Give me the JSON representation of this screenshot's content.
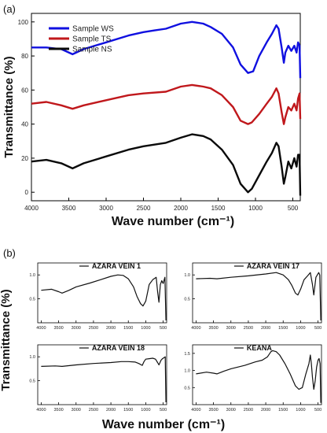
{
  "panel_a": {
    "label": "(a)",
    "xlabel": "Wave number (cm⁻¹)",
    "ylabel": "Transmittance (%)"
  },
  "panel_b": {
    "label": "(b)",
    "xlabel": "Wave number (cm⁻¹)",
    "ylabel": "Transmittance (%)"
  },
  "chart_data": [
    {
      "type": "line",
      "panel": "a",
      "xlabel": "Wave number (cm⁻¹)",
      "ylabel": "Transmittance (%)",
      "xlim": [
        4000,
        400
      ],
      "ylim": [
        -5,
        105
      ],
      "x_ticks": [
        "4000",
        "3500",
        "3000",
        "2500",
        "2000",
        "1500",
        "1000",
        "500"
      ],
      "y_ticks": [
        "0",
        "20",
        "40",
        "60",
        "80",
        "100"
      ],
      "legend_position": "top-left",
      "series": [
        {
          "name": "Sample WS",
          "color": "#1010e0",
          "x": [
            4000,
            3800,
            3600,
            3450,
            3300,
            3000,
            2700,
            2500,
            2350,
            2200,
            2000,
            1850,
            1700,
            1600,
            1450,
            1300,
            1200,
            1100,
            1030,
            950,
            850,
            780,
            720,
            690,
            650,
            620,
            600,
            560,
            520,
            480,
            450,
            430,
            410,
            400
          ],
          "y": [
            85,
            85,
            84,
            81,
            84,
            88,
            92,
            94,
            95,
            96,
            99,
            100,
            99,
            97,
            93,
            85,
            75,
            70,
            71,
            80,
            88,
            93,
            98,
            96,
            85,
            76,
            82,
            86,
            83,
            86,
            82,
            88,
            86,
            67
          ]
        },
        {
          "name": "Sample TS",
          "color": "#c0181c",
          "x": [
            4000,
            3800,
            3600,
            3450,
            3300,
            3000,
            2700,
            2500,
            2200,
            2000,
            1850,
            1700,
            1600,
            1450,
            1300,
            1200,
            1100,
            1050,
            950,
            850,
            780,
            720,
            690,
            650,
            620,
            600,
            560,
            520,
            480,
            450,
            430,
            410,
            400
          ],
          "y": [
            52,
            53,
            51,
            49,
            51,
            54,
            57,
            58,
            59,
            62,
            63,
            62,
            61,
            57,
            50,
            42,
            40,
            41,
            46,
            52,
            56,
            61,
            58,
            47,
            40,
            44,
            50,
            48,
            52,
            48,
            55,
            58,
            43
          ]
        },
        {
          "name": "Sample NS",
          "color": "#0a0a0a",
          "x": [
            4000,
            3800,
            3600,
            3450,
            3300,
            3000,
            2700,
            2500,
            2200,
            2000,
            1850,
            1700,
            1600,
            1450,
            1300,
            1200,
            1100,
            1050,
            950,
            850,
            780,
            720,
            690,
            650,
            620,
            600,
            560,
            520,
            480,
            450,
            430,
            410,
            400
          ],
          "y": [
            18,
            19,
            17,
            14,
            17,
            21,
            25,
            27,
            29,
            32,
            34,
            33,
            31,
            25,
            16,
            5,
            0,
            2,
            10,
            18,
            23,
            29,
            27,
            15,
            5,
            9,
            18,
            14,
            20,
            15,
            22,
            22,
            -2
          ]
        }
      ]
    },
    {
      "type": "line",
      "panel": "b1",
      "xlim": [
        4100,
        400
      ],
      "ylim": [
        0,
        1.25
      ],
      "x_ticks": [
        "4000",
        "3500",
        "3000",
        "2500",
        "2000",
        "1500",
        "1000",
        "500"
      ],
      "y_ticks": [
        "0.5",
        "1.0"
      ],
      "legend_position": "top",
      "series": [
        {
          "name": "AZARA VEIN 1",
          "color": "#111111",
          "x": [
            4000,
            3700,
            3500,
            3400,
            3200,
            3000,
            2600,
            2300,
            2000,
            1800,
            1650,
            1500,
            1350,
            1250,
            1150,
            1080,
            1000,
            900,
            800,
            700,
            660,
            620,
            580,
            540,
            500,
            470,
            450,
            420
          ],
          "y": [
            0.68,
            0.7,
            0.65,
            0.62,
            0.68,
            0.75,
            0.83,
            0.9,
            0.97,
            1.0,
            0.99,
            0.92,
            0.75,
            0.55,
            0.4,
            0.35,
            0.45,
            0.8,
            0.9,
            0.95,
            0.65,
            0.43,
            0.8,
            0.88,
            0.82,
            0.9,
            0.95,
            0.05
          ]
        }
      ]
    },
    {
      "type": "line",
      "panel": "b2",
      "xlim": [
        4100,
        400
      ],
      "ylim": [
        0,
        1.25
      ],
      "x_ticks": [
        "4000",
        "3500",
        "3000",
        "2500",
        "2000",
        "1500",
        "1000",
        "500"
      ],
      "y_ticks": [
        "0.5",
        "1.0"
      ],
      "legend_position": "top",
      "series": [
        {
          "name": "AZARA VEIN 17",
          "color": "#111111",
          "x": [
            4000,
            3600,
            3400,
            3000,
            2500,
            2000,
            1700,
            1500,
            1350,
            1250,
            1150,
            1080,
            1000,
            900,
            800,
            720,
            660,
            620,
            560,
            520,
            480,
            450,
            420
          ],
          "y": [
            0.92,
            0.93,
            0.92,
            0.95,
            0.98,
            1.02,
            1.05,
            1.0,
            0.9,
            0.78,
            0.62,
            0.58,
            0.7,
            0.9,
            0.98,
            1.05,
            0.8,
            0.58,
            0.95,
            1.0,
            1.05,
            1.0,
            0.05
          ]
        }
      ]
    },
    {
      "type": "line",
      "panel": "b3",
      "xlim": [
        4100,
        400
      ],
      "ylim": [
        0,
        1.25
      ],
      "x_ticks": [
        "4000",
        "3500",
        "3000",
        "2500",
        "2000",
        "1500",
        "1000",
        "500"
      ],
      "y_ticks": [
        "0.5",
        "1.0"
      ],
      "legend_position": "top",
      "series": [
        {
          "name": "AZARA VEIN 18",
          "color": "#111111",
          "x": [
            4000,
            3600,
            3400,
            3000,
            2500,
            2000,
            1700,
            1500,
            1300,
            1200,
            1100,
            1050,
            1000,
            900,
            800,
            720,
            660,
            620,
            560,
            520,
            480,
            460,
            440,
            420
          ],
          "y": [
            0.8,
            0.81,
            0.8,
            0.83,
            0.86,
            0.88,
            0.9,
            0.9,
            0.89,
            0.86,
            0.82,
            0.9,
            0.95,
            0.96,
            0.97,
            0.95,
            0.88,
            0.83,
            0.93,
            0.96,
            0.98,
            0.99,
            1.0,
            0.05
          ]
        }
      ]
    },
    {
      "type": "line",
      "panel": "b4",
      "xlim": [
        4100,
        400
      ],
      "ylim": [
        0,
        1.75
      ],
      "x_ticks": [
        "4000",
        "3500",
        "3000",
        "2500",
        "2000",
        "1500",
        "1000",
        "500"
      ],
      "y_ticks": [
        "0.5",
        "1.0",
        "1.5"
      ],
      "legend_position": "top",
      "series": [
        {
          "name": "KEANA",
          "color": "#111111",
          "x": [
            4000,
            3700,
            3500,
            3400,
            3200,
            3000,
            2600,
            2300,
            2100,
            1950,
            1850,
            1800,
            1700,
            1600,
            1450,
            1300,
            1150,
            1050,
            950,
            850,
            760,
            720,
            690,
            660,
            620,
            580,
            540,
            500,
            470,
            440,
            420
          ],
          "y": [
            0.9,
            0.95,
            0.92,
            0.9,
            0.98,
            1.05,
            1.15,
            1.25,
            1.3,
            1.4,
            1.55,
            1.58,
            1.55,
            1.45,
            1.2,
            0.9,
            0.55,
            0.45,
            0.5,
            0.9,
            1.2,
            1.45,
            1.2,
            0.8,
            0.45,
            0.7,
            1.1,
            1.3,
            1.35,
            1.2,
            0.05
          ]
        }
      ]
    }
  ]
}
